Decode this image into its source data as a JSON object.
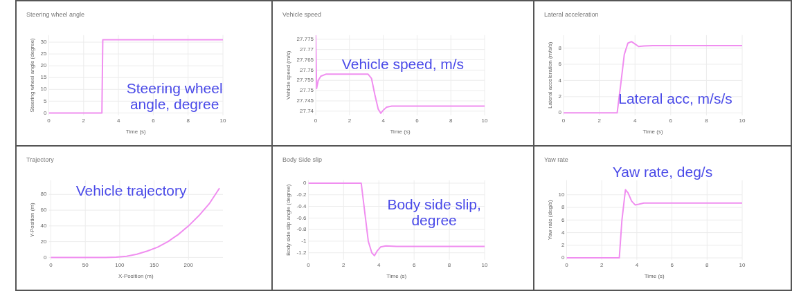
{
  "chart_data": [
    {
      "type": "line",
      "title": "Steering wheel angle",
      "xlabel": "Time (s)",
      "ylabel": "Steering wheel angle (degree)",
      "annotations": [
        "Steering wheel angle, degree"
      ],
      "grid": true,
      "xlim": [
        0,
        10
      ],
      "xticks": [
        0,
        2,
        4,
        6,
        8,
        10
      ],
      "ylim": [
        -1,
        33
      ],
      "yticks": [
        0,
        5,
        10,
        15,
        20,
        25,
        30
      ],
      "series": [
        {
          "color": "#f08ef0",
          "x": [
            0,
            3.05,
            3.1,
            10
          ],
          "values": [
            0,
            0,
            31,
            31
          ]
        }
      ]
    },
    {
      "type": "line",
      "title": "Vehicle speed",
      "xlabel": "Time (s)",
      "ylabel": "Vehicle speed (m/s)",
      "annotations": [
        "Vehicle speed, m/s"
      ],
      "grid": true,
      "xlim": [
        0,
        10
      ],
      "xticks": [
        0,
        2,
        4,
        6,
        8,
        10
      ],
      "ylim": [
        27.738,
        27.777
      ],
      "yticks": [
        27.74,
        27.745,
        27.75,
        27.755,
        27.76,
        27.765,
        27.77,
        27.775
      ],
      "series": [
        {
          "color": "#f08ef0",
          "x": [
            0,
            0.05,
            0.15,
            0.3,
            0.6,
            3.1,
            3.3,
            3.5,
            3.7,
            3.85,
            4.0,
            4.2,
            4.5,
            5,
            10
          ],
          "values": [
            27.777,
            27.751,
            27.755,
            27.757,
            27.758,
            27.758,
            27.756,
            27.748,
            27.741,
            27.739,
            27.7405,
            27.742,
            27.7425,
            27.7425,
            27.7425
          ]
        }
      ]
    },
    {
      "type": "line",
      "title": "Lateral acceleration",
      "xlabel": "Time (s)",
      "ylabel": "Lateral acceleration (m/s/s)",
      "annotations": [
        "Lateral acc, m/s/s"
      ],
      "grid": true,
      "xlim": [
        0,
        10
      ],
      "xticks": [
        0,
        2,
        4,
        6,
        8,
        10
      ],
      "ylim": [
        -0.3,
        9.6
      ],
      "yticks": [
        0,
        2,
        4,
        6,
        8
      ],
      "series": [
        {
          "color": "#f08ef0",
          "x": [
            0,
            3.0,
            3.2,
            3.4,
            3.6,
            3.8,
            4.0,
            4.2,
            4.5,
            5,
            10
          ],
          "values": [
            0,
            0,
            3.5,
            7.2,
            8.6,
            8.8,
            8.5,
            8.2,
            8.25,
            8.3,
            8.3
          ]
        }
      ]
    },
    {
      "type": "line",
      "title": "Trajectory",
      "xlabel": "X-Position (m)",
      "ylabel": "Y-Position (m)",
      "annotations": [
        "Vehicle trajectory"
      ],
      "grid": true,
      "xlim": [
        -3,
        250
      ],
      "xticks": [
        0,
        50,
        100,
        150,
        200
      ],
      "ylim": [
        -3,
        98
      ],
      "yticks": [
        0,
        20,
        40,
        60,
        80
      ],
      "series": [
        {
          "color": "#f08ef0",
          "x": [
            0,
            80,
            95,
            110,
            125,
            140,
            155,
            170,
            185,
            200,
            215,
            230,
            245
          ],
          "values": [
            0,
            0,
            0.3,
            1.5,
            4,
            8,
            13,
            20,
            29,
            40,
            53,
            68,
            88
          ]
        }
      ]
    },
    {
      "type": "line",
      "title": "Body Side slip",
      "xlabel": "Time (s)",
      "ylabel": "Body side slip angle (degree)",
      "annotations": [
        "Body side slip, degree"
      ],
      "grid": true,
      "xlim": [
        0,
        10
      ],
      "xticks": [
        0,
        2,
        4,
        6,
        8,
        10
      ],
      "ylim": [
        -1.32,
        0.05
      ],
      "yticks": [
        0,
        {
          "value": -0.2,
          "label": "-0.2"
        },
        {
          "value": -0.4,
          "label": "-0.4"
        },
        {
          "value": -0.6,
          "label": "-0.6"
        },
        {
          "value": -0.8,
          "label": "-0.8"
        },
        -1,
        {
          "value": -1.2,
          "label": "-1.2"
        }
      ],
      "series": [
        {
          "color": "#f08ef0",
          "x": [
            0,
            3.0,
            3.2,
            3.4,
            3.6,
            3.75,
            3.9,
            4.1,
            4.4,
            5,
            10
          ],
          "values": [
            0,
            0,
            -0.5,
            -1.0,
            -1.2,
            -1.25,
            -1.17,
            -1.1,
            -1.08,
            -1.09,
            -1.09
          ]
        }
      ]
    },
    {
      "type": "line",
      "title": "Yaw rate",
      "xlabel": "Time (s)",
      "ylabel": "Yaw rate (deg/s)",
      "annotations": [
        "Yaw rate, deg/s"
      ],
      "grid": true,
      "xlim": [
        0,
        10
      ],
      "xticks": [
        0,
        2,
        4,
        6,
        8,
        10
      ],
      "ylim": [
        -0.3,
        12.3
      ],
      "yticks": [
        0,
        2,
        4,
        6,
        8,
        10
      ],
      "series": [
        {
          "color": "#f08ef0",
          "x": [
            0,
            3.0,
            3.15,
            3.35,
            3.5,
            3.7,
            3.9,
            4.1,
            4.4,
            5,
            10
          ],
          "values": [
            0,
            0,
            6,
            10.8,
            10.3,
            9.0,
            8.4,
            8.5,
            8.7,
            8.7,
            8.7
          ]
        }
      ]
    }
  ]
}
